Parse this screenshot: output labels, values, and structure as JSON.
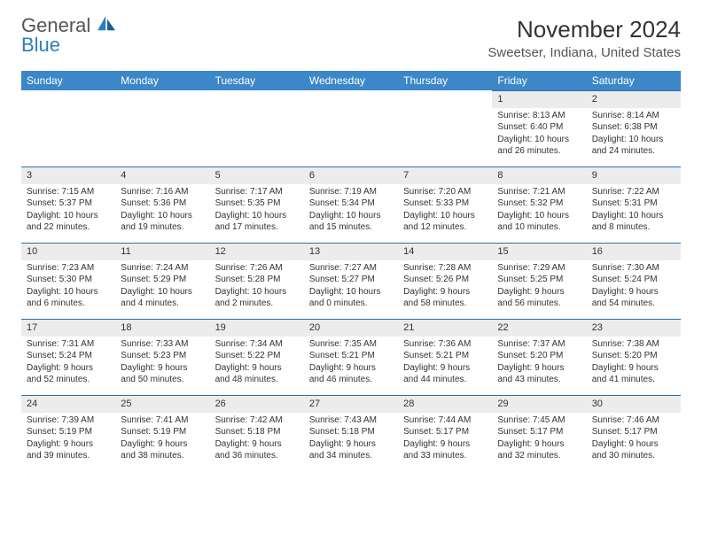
{
  "logo": {
    "line1": "General",
    "line2": "Blue"
  },
  "title": "November 2024",
  "location": "Sweetser, Indiana, United States",
  "colors": {
    "header_bg": "#3b87c8",
    "header_text": "#ffffff",
    "daynum_bg": "#ececec",
    "row_divider": "#2a6fa8",
    "logo_gray": "#555555",
    "logo_blue": "#2a7fbf"
  },
  "weekdays": [
    "Sunday",
    "Monday",
    "Tuesday",
    "Wednesday",
    "Thursday",
    "Friday",
    "Saturday"
  ],
  "weeks": [
    [
      null,
      null,
      null,
      null,
      null,
      {
        "n": "1",
        "sr": "Sunrise: 8:13 AM",
        "ss": "Sunset: 6:40 PM",
        "d1": "Daylight: 10 hours",
        "d2": "and 26 minutes."
      },
      {
        "n": "2",
        "sr": "Sunrise: 8:14 AM",
        "ss": "Sunset: 6:38 PM",
        "d1": "Daylight: 10 hours",
        "d2": "and 24 minutes."
      }
    ],
    [
      {
        "n": "3",
        "sr": "Sunrise: 7:15 AM",
        "ss": "Sunset: 5:37 PM",
        "d1": "Daylight: 10 hours",
        "d2": "and 22 minutes."
      },
      {
        "n": "4",
        "sr": "Sunrise: 7:16 AM",
        "ss": "Sunset: 5:36 PM",
        "d1": "Daylight: 10 hours",
        "d2": "and 19 minutes."
      },
      {
        "n": "5",
        "sr": "Sunrise: 7:17 AM",
        "ss": "Sunset: 5:35 PM",
        "d1": "Daylight: 10 hours",
        "d2": "and 17 minutes."
      },
      {
        "n": "6",
        "sr": "Sunrise: 7:19 AM",
        "ss": "Sunset: 5:34 PM",
        "d1": "Daylight: 10 hours",
        "d2": "and 15 minutes."
      },
      {
        "n": "7",
        "sr": "Sunrise: 7:20 AM",
        "ss": "Sunset: 5:33 PM",
        "d1": "Daylight: 10 hours",
        "d2": "and 12 minutes."
      },
      {
        "n": "8",
        "sr": "Sunrise: 7:21 AM",
        "ss": "Sunset: 5:32 PM",
        "d1": "Daylight: 10 hours",
        "d2": "and 10 minutes."
      },
      {
        "n": "9",
        "sr": "Sunrise: 7:22 AM",
        "ss": "Sunset: 5:31 PM",
        "d1": "Daylight: 10 hours",
        "d2": "and 8 minutes."
      }
    ],
    [
      {
        "n": "10",
        "sr": "Sunrise: 7:23 AM",
        "ss": "Sunset: 5:30 PM",
        "d1": "Daylight: 10 hours",
        "d2": "and 6 minutes."
      },
      {
        "n": "11",
        "sr": "Sunrise: 7:24 AM",
        "ss": "Sunset: 5:29 PM",
        "d1": "Daylight: 10 hours",
        "d2": "and 4 minutes."
      },
      {
        "n": "12",
        "sr": "Sunrise: 7:26 AM",
        "ss": "Sunset: 5:28 PM",
        "d1": "Daylight: 10 hours",
        "d2": "and 2 minutes."
      },
      {
        "n": "13",
        "sr": "Sunrise: 7:27 AM",
        "ss": "Sunset: 5:27 PM",
        "d1": "Daylight: 10 hours",
        "d2": "and 0 minutes."
      },
      {
        "n": "14",
        "sr": "Sunrise: 7:28 AM",
        "ss": "Sunset: 5:26 PM",
        "d1": "Daylight: 9 hours",
        "d2": "and 58 minutes."
      },
      {
        "n": "15",
        "sr": "Sunrise: 7:29 AM",
        "ss": "Sunset: 5:25 PM",
        "d1": "Daylight: 9 hours",
        "d2": "and 56 minutes."
      },
      {
        "n": "16",
        "sr": "Sunrise: 7:30 AM",
        "ss": "Sunset: 5:24 PM",
        "d1": "Daylight: 9 hours",
        "d2": "and 54 minutes."
      }
    ],
    [
      {
        "n": "17",
        "sr": "Sunrise: 7:31 AM",
        "ss": "Sunset: 5:24 PM",
        "d1": "Daylight: 9 hours",
        "d2": "and 52 minutes."
      },
      {
        "n": "18",
        "sr": "Sunrise: 7:33 AM",
        "ss": "Sunset: 5:23 PM",
        "d1": "Daylight: 9 hours",
        "d2": "and 50 minutes."
      },
      {
        "n": "19",
        "sr": "Sunrise: 7:34 AM",
        "ss": "Sunset: 5:22 PM",
        "d1": "Daylight: 9 hours",
        "d2": "and 48 minutes."
      },
      {
        "n": "20",
        "sr": "Sunrise: 7:35 AM",
        "ss": "Sunset: 5:21 PM",
        "d1": "Daylight: 9 hours",
        "d2": "and 46 minutes."
      },
      {
        "n": "21",
        "sr": "Sunrise: 7:36 AM",
        "ss": "Sunset: 5:21 PM",
        "d1": "Daylight: 9 hours",
        "d2": "and 44 minutes."
      },
      {
        "n": "22",
        "sr": "Sunrise: 7:37 AM",
        "ss": "Sunset: 5:20 PM",
        "d1": "Daylight: 9 hours",
        "d2": "and 43 minutes."
      },
      {
        "n": "23",
        "sr": "Sunrise: 7:38 AM",
        "ss": "Sunset: 5:20 PM",
        "d1": "Daylight: 9 hours",
        "d2": "and 41 minutes."
      }
    ],
    [
      {
        "n": "24",
        "sr": "Sunrise: 7:39 AM",
        "ss": "Sunset: 5:19 PM",
        "d1": "Daylight: 9 hours",
        "d2": "and 39 minutes."
      },
      {
        "n": "25",
        "sr": "Sunrise: 7:41 AM",
        "ss": "Sunset: 5:19 PM",
        "d1": "Daylight: 9 hours",
        "d2": "and 38 minutes."
      },
      {
        "n": "26",
        "sr": "Sunrise: 7:42 AM",
        "ss": "Sunset: 5:18 PM",
        "d1": "Daylight: 9 hours",
        "d2": "and 36 minutes."
      },
      {
        "n": "27",
        "sr": "Sunrise: 7:43 AM",
        "ss": "Sunset: 5:18 PM",
        "d1": "Daylight: 9 hours",
        "d2": "and 34 minutes."
      },
      {
        "n": "28",
        "sr": "Sunrise: 7:44 AM",
        "ss": "Sunset: 5:17 PM",
        "d1": "Daylight: 9 hours",
        "d2": "and 33 minutes."
      },
      {
        "n": "29",
        "sr": "Sunrise: 7:45 AM",
        "ss": "Sunset: 5:17 PM",
        "d1": "Daylight: 9 hours",
        "d2": "and 32 minutes."
      },
      {
        "n": "30",
        "sr": "Sunrise: 7:46 AM",
        "ss": "Sunset: 5:17 PM",
        "d1": "Daylight: 9 hours",
        "d2": "and 30 minutes."
      }
    ]
  ]
}
